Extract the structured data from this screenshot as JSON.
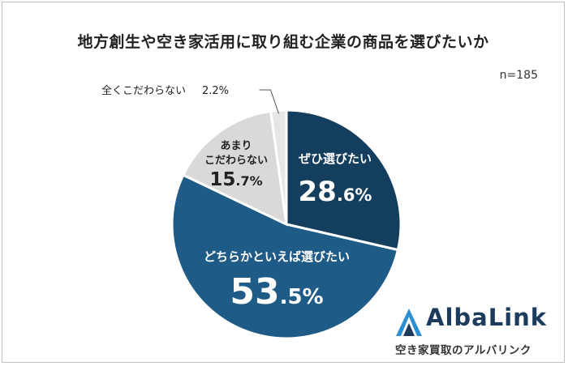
{
  "title": "地方創生や空き家活用に取り組む企業の商品を選びたいか",
  "sample_size": "n=185",
  "chart_data": {
    "type": "pie",
    "title": "地方創生や空き家活用に取り組む企業の商品を選びたいか",
    "start": "12 o'clock, clockwise",
    "slices": [
      {
        "label": "ぜひ選びたい",
        "value": 28.6,
        "value_main": "28",
        "value_dec": ".6%",
        "color": "#143e5e",
        "label_color": "#ffffff"
      },
      {
        "label": "どちらかといえば選びたい",
        "value": 53.5,
        "value_main": "53",
        "value_dec": ".5%",
        "color": "#1e5b87",
        "label_color": "#ffffff"
      },
      {
        "label": "あまり\nこだわらない",
        "label_lines": [
          "あまり",
          "こだわらない"
        ],
        "value": 15.7,
        "value_main": "15",
        "value_dec": ".7%",
        "color": "#d9d9d9",
        "label_color": "#222222"
      },
      {
        "label": "全くこだわらない",
        "value": 2.2,
        "value_text": "2.2%",
        "color": "#e6e6e6",
        "label_color": "#222222"
      }
    ]
  },
  "logo": {
    "name": "AlbaLink",
    "tagline": "空き家買取のアルバリンク",
    "mark_colors": [
      "#2a8fd4",
      "#1d3b5c"
    ]
  }
}
